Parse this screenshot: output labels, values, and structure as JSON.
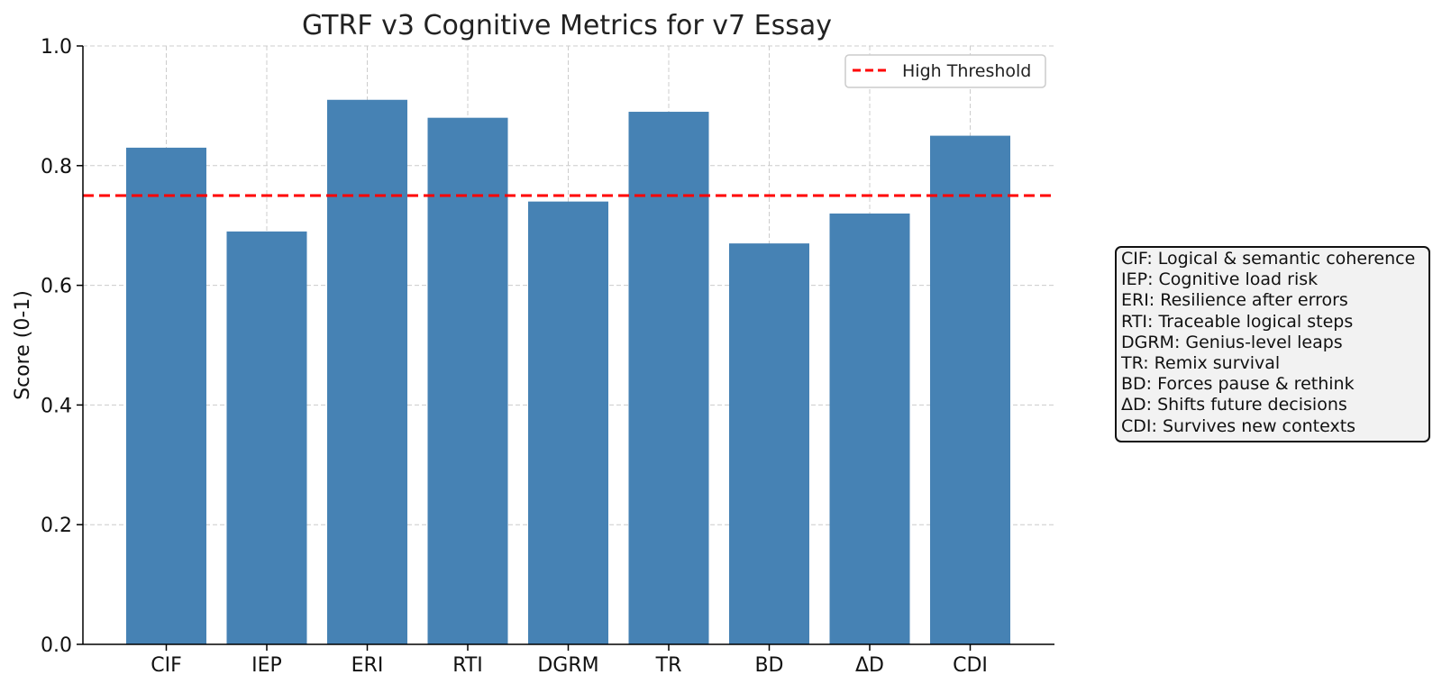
{
  "chart_data": {
    "type": "bar",
    "title": "GTRF v3 Cognitive Metrics for v7 Essay",
    "xlabel": "",
    "ylabel": "Score (0-1)",
    "ylim": [
      0,
      1.0
    ],
    "yticks": [
      "0.0",
      "0.2",
      "0.4",
      "0.6",
      "0.8",
      "1.0"
    ],
    "grid": true,
    "categories": [
      "CIF",
      "IEP",
      "ERI",
      "RTI",
      "DGRM",
      "TR",
      "BD",
      "ΔD",
      "CDI"
    ],
    "values": [
      0.83,
      0.69,
      0.91,
      0.88,
      0.74,
      0.89,
      0.67,
      0.72,
      0.85
    ],
    "bar_color": "#4682b4",
    "threshold": {
      "value": 0.75,
      "label": "High Threshold",
      "color": "#ff0000",
      "style": "dashed"
    },
    "legend_position": "top-right",
    "annotation_lines": [
      "CIF: Logical & semantic coherence",
      "IEP: Cognitive load risk",
      "ERI: Resilience after errors",
      "RTI: Traceable logical steps",
      "DGRM: Genius-level leaps",
      "TR: Remix survival",
      "BD: Forces pause & rethink",
      "ΔD: Shifts future decisions",
      "CDI: Survives new contexts"
    ]
  }
}
